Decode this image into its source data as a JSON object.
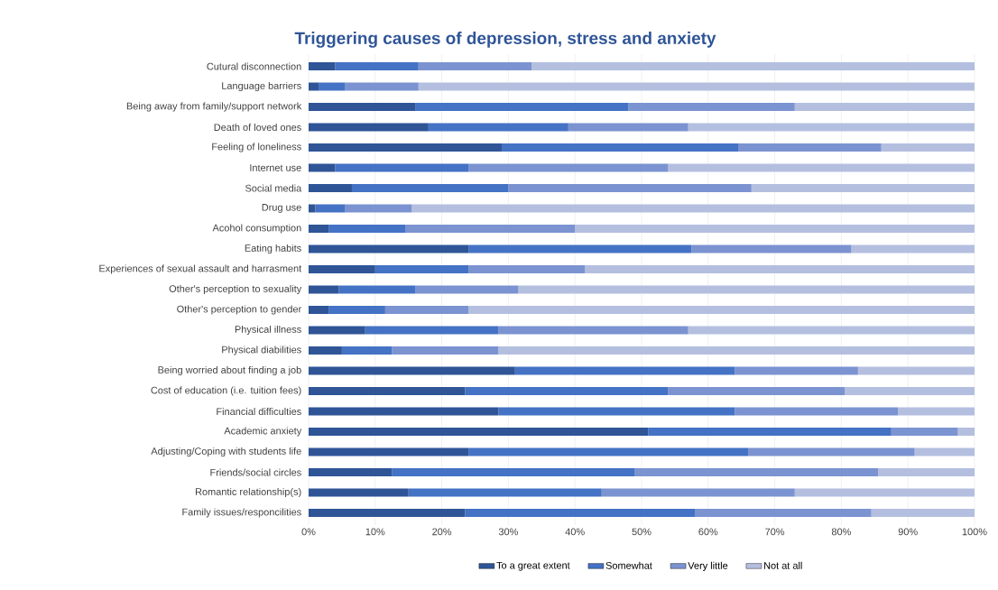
{
  "chart_data": {
    "type": "bar",
    "orientation": "horizontal",
    "stacked": true,
    "title": "Triggering causes of depression, stress and anxiety",
    "categories": [
      "Cutural disconnection",
      "Language barriers",
      "Being away from family/support network",
      "Death of loved ones",
      "Feeling of loneliness",
      "Internet use",
      "Social media",
      "Drug use",
      "Acohol consumption",
      "Eating habits",
      "Experiences of sexual assault and harrasment",
      "Other's perception to sexuality",
      "Other's perception to gender",
      "Physical illness",
      "Physical diabilities",
      "Being worried about finding a job",
      "Cost of education (i.e. tuition fees)",
      "Financial difficulties",
      "Academic anxiety",
      "Adjusting/Coping with students life",
      "Friends/social circles",
      "Romantic relationship(s)",
      "Family issues/responcilities"
    ],
    "series": [
      {
        "name": "To a great extent",
        "color": "#2f5597",
        "values": [
          4,
          1.5,
          16,
          18,
          29,
          4,
          6.5,
          1,
          3,
          24,
          10,
          4.5,
          3,
          8.5,
          5,
          31,
          23.5,
          28.5,
          51,
          24,
          12.5,
          15,
          23.5
        ]
      },
      {
        "name": "Somewhat",
        "color": "#4472c4",
        "values": [
          12.5,
          4,
          32,
          21,
          35.5,
          20,
          23.5,
          4.5,
          11.5,
          33.5,
          14,
          11.5,
          8.5,
          20,
          7.5,
          33,
          30.5,
          35.5,
          36.5,
          42,
          36.5,
          29,
          34.5
        ]
      },
      {
        "name": "Very little",
        "color": "#7b93d0",
        "values": [
          17,
          11,
          25,
          18,
          21.5,
          30,
          36.5,
          10,
          25.5,
          24,
          17.5,
          15.5,
          12.5,
          28.5,
          16,
          18.5,
          26.5,
          24.5,
          10,
          25,
          36.5,
          29,
          26.5
        ]
      },
      {
        "name": "Not at all",
        "color": "#b4bfe0",
        "values": [
          66.5,
          83.5,
          27,
          43,
          14,
          46,
          33.5,
          84.5,
          60,
          18.5,
          58.5,
          68.5,
          76,
          43,
          71.5,
          17.5,
          19.5,
          11.5,
          2.5,
          9,
          14.5,
          27,
          15.5
        ]
      }
    ],
    "xlim": [
      0,
      100
    ],
    "xticks": [
      {
        "value": 0,
        "label": "0%"
      },
      {
        "value": 10,
        "label": "10%"
      },
      {
        "value": 20,
        "label": "20%"
      },
      {
        "value": 30,
        "label": "30%"
      },
      {
        "value": 40,
        "label": "40%"
      },
      {
        "value": 50,
        "label": "50%"
      },
      {
        "value": 60,
        "label": "60%"
      },
      {
        "value": 70,
        "label": "70%"
      },
      {
        "value": 80,
        "label": "80%"
      },
      {
        "value": 90,
        "label": "90%"
      },
      {
        "value": 100,
        "label": "100%"
      }
    ],
    "grid": "x",
    "legend": "bottom"
  }
}
